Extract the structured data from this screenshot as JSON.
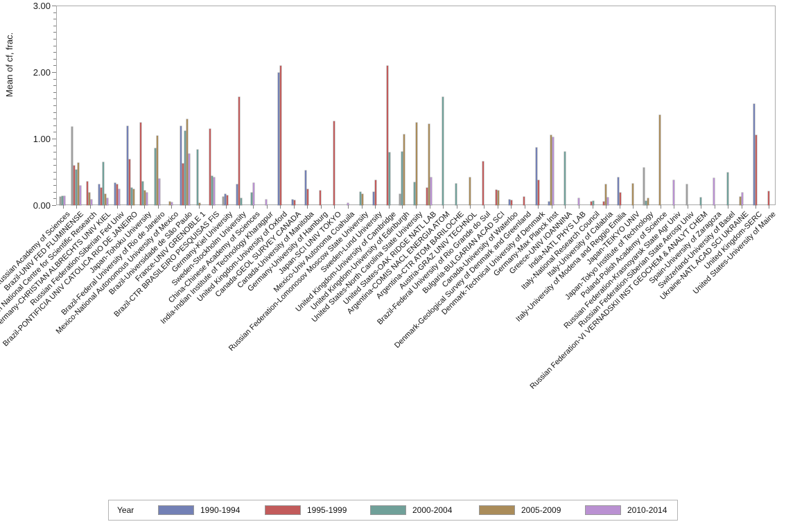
{
  "chart_data": {
    "type": "bar",
    "title": "",
    "xlabel": "",
    "ylabel": "Mean of cf, frac.",
    "ylim": [
      0,
      3
    ],
    "yticks": [
      "0.00",
      "1.00",
      "2.00",
      "3.00"
    ],
    "y_minor_tick_interval": 0.1,
    "grid": "off",
    "legend_position": "bottom",
    "legend_title": "Year",
    "categories": [
      "Russian Federation-Russian Academy of Sciences",
      "Brazil-UNIV FED FLUMINENSE",
      "France-French National Centre for Scientific Research",
      "Germany-CHRISTIAN ALBRECHTS UNIV KIEL",
      "Russian Federation-Siberian Fed Univ",
      "Brazil-PONTIFICIA UNIV CATOLICA RIO DE JANEIRO",
      "Japan-Tohoku University",
      "Brazil-Federal University of Rio de Janeiro",
      "Mexico-National Autonomous University of Mexico",
      "Brazil-Universidade de São Paulo",
      "France-UNIV GRENOBLE 1",
      "Brazil-CTR BRASILEIRO PESQUISAS FIS",
      "Germany-Kiel University",
      "Sweden-Stockholm University",
      "China-Chinese Academy of Sciences",
      "India-Indian Institute of Technology Kharagpur",
      "United Kingdom-University of Oxford",
      "Canada-GEOL SURVEY CANADA",
      "Canada-University of Manitoba",
      "Germany-University of Hamburg",
      "Japan-SCI UNIV TOKYO",
      "Mexico-Univ Autonoma Coahuila",
      "Russian Federation-Lomonosov Moscow State University",
      "Sweden-Lund University",
      "United Kingdom-University of Cambridge",
      "United Kingdom-University of Edinburgh",
      "United States-North Carolina State University",
      "United States-OAK RIDGE NATL LAB",
      "Argentina-COMIS NACL ENERGIA ATOM",
      "Argentina-CTR ATOM BARILOCHE",
      "Austria-GRAZ UNIV TECHNOL",
      "Brazil-Federal University of Rio Grande do Sul",
      "Bulgaria-BULGARIAN ACAD SCI",
      "Canada-University of Waterloo",
      "Denmark-Geological Survey of Denmark and Greenland",
      "Denmark-Technical University of Denmark",
      "Germany-Max Planck Inst",
      "Greece-UNIV IOANNINA",
      "India-NATL PHYS LAB",
      "Italy-National Research Council",
      "Italy-University of Calabria",
      "Italy-University of Modena and Reggio Emilia",
      "Japan-TEIKYO UNIV",
      "Japan-Tokyo Institute of Technology",
      "Poland-Polish Academy of Science",
      "Russian Federation-Krasnoyarsk State Agr Univ",
      "Russian Federation-Siberian State Aerosp Univ",
      "Russian Federation-VI VERNADSKII INST GEOCHEM & ANALYT CHEM",
      "Spain-University of Zaragoza",
      "Switzerland-University of Basel",
      "Ukraine-NATL ACAD SCI UKRAINE",
      "United Kingdom-SERC",
      "United States-University of Maine"
    ],
    "series": [
      {
        "name": "",
        "in_legend": false,
        "color": "#9e9e9e",
        "values": [
          0.13,
          1.18,
          null,
          null,
          null,
          null,
          null,
          null,
          null,
          null,
          null,
          null,
          0.12,
          null,
          null,
          null,
          null,
          null,
          null,
          null,
          null,
          null,
          null,
          null,
          null,
          0.17,
          null,
          null,
          null,
          null,
          null,
          null,
          null,
          null,
          null,
          null,
          null,
          null,
          null,
          null,
          null,
          null,
          null,
          0.56,
          null,
          null,
          0.31,
          null,
          null,
          null,
          null,
          null,
          null
        ]
      },
      {
        "name": "1990-1994",
        "in_legend": true,
        "color": "#7380b5",
        "values": [
          null,
          null,
          null,
          0.31,
          0.33,
          1.19,
          null,
          null,
          null,
          1.19,
          null,
          null,
          0.17,
          0.31,
          null,
          null,
          1.99,
          0.08,
          0.52,
          null,
          null,
          null,
          null,
          0.2,
          null,
          null,
          null,
          null,
          null,
          null,
          null,
          null,
          null,
          0.08,
          null,
          0.86,
          0.05,
          null,
          null,
          null,
          null,
          0.42,
          null,
          null,
          null,
          null,
          null,
          null,
          null,
          null,
          null,
          1.52,
          null
        ]
      },
      {
        "name": "1995-1999",
        "in_legend": true,
        "color": "#c25b5b",
        "values": [
          null,
          0.59,
          0.35,
          0.26,
          0.31,
          0.69,
          1.24,
          null,
          null,
          0.62,
          null,
          1.15,
          0.15,
          1.63,
          null,
          null,
          2.09,
          0.07,
          0.24,
          0.22,
          1.26,
          null,
          null,
          0.38,
          2.09,
          null,
          null,
          0.26,
          null,
          null,
          null,
          0.66,
          0.23,
          0.07,
          0.13,
          0.37,
          null,
          null,
          null,
          0.05,
          0.05,
          0.19,
          null,
          null,
          null,
          null,
          null,
          null,
          null,
          null,
          null,
          1.05,
          0.21
        ]
      },
      {
        "name": "2000-2004",
        "in_legend": true,
        "color": "#70a099",
        "values": [
          0.14,
          0.53,
          null,
          0.65,
          null,
          0.26,
          0.35,
          0.85,
          null,
          1.11,
          0.83,
          0.44,
          null,
          0.1,
          0.19,
          null,
          null,
          null,
          null,
          null,
          null,
          null,
          0.2,
          null,
          0.79,
          0.8,
          0.34,
          null,
          1.63,
          0.32,
          null,
          null,
          null,
          null,
          null,
          null,
          null,
          0.8,
          null,
          0.06,
          null,
          null,
          null,
          0.06,
          null,
          null,
          null,
          0.11,
          null,
          0.49,
          null,
          null,
          null
        ]
      },
      {
        "name": "2005-2009",
        "in_legend": true,
        "color": "#aa8c5a",
        "values": [
          null,
          0.64,
          0.19,
          0.17,
          null,
          0.24,
          0.22,
          1.04,
          0.05,
          1.29,
          0.03,
          null,
          null,
          null,
          null,
          null,
          null,
          null,
          null,
          null,
          null,
          null,
          0.17,
          null,
          null,
          1.06,
          1.24,
          1.22,
          null,
          null,
          0.42,
          null,
          0.22,
          null,
          null,
          null,
          1.05,
          null,
          null,
          null,
          0.31,
          null,
          0.32,
          0.1,
          1.35,
          null,
          null,
          null,
          null,
          null,
          0.13,
          null,
          null
        ]
      },
      {
        "name": "2010-2014",
        "in_legend": true,
        "color": "#ba91d2",
        "values": [
          0.14,
          0.29,
          0.08,
          0.1,
          0.24,
          null,
          0.19,
          0.4,
          0.04,
          0.77,
          null,
          0.42,
          null,
          null,
          0.33,
          0.08,
          null,
          null,
          null,
          null,
          null,
          0.03,
          null,
          null,
          null,
          null,
          null,
          0.42,
          null,
          null,
          null,
          null,
          null,
          null,
          null,
          null,
          1.02,
          null,
          0.1,
          null,
          0.11,
          null,
          null,
          null,
          null,
          0.38,
          null,
          null,
          0.41,
          null,
          0.19,
          null,
          null
        ]
      }
    ],
    "colors": {
      "axis": "#a9a9a9",
      "tick": "#7f7f7f",
      "text": "#111111",
      "legend_border": "#b4b4b4",
      "background": "#ffffff"
    }
  }
}
